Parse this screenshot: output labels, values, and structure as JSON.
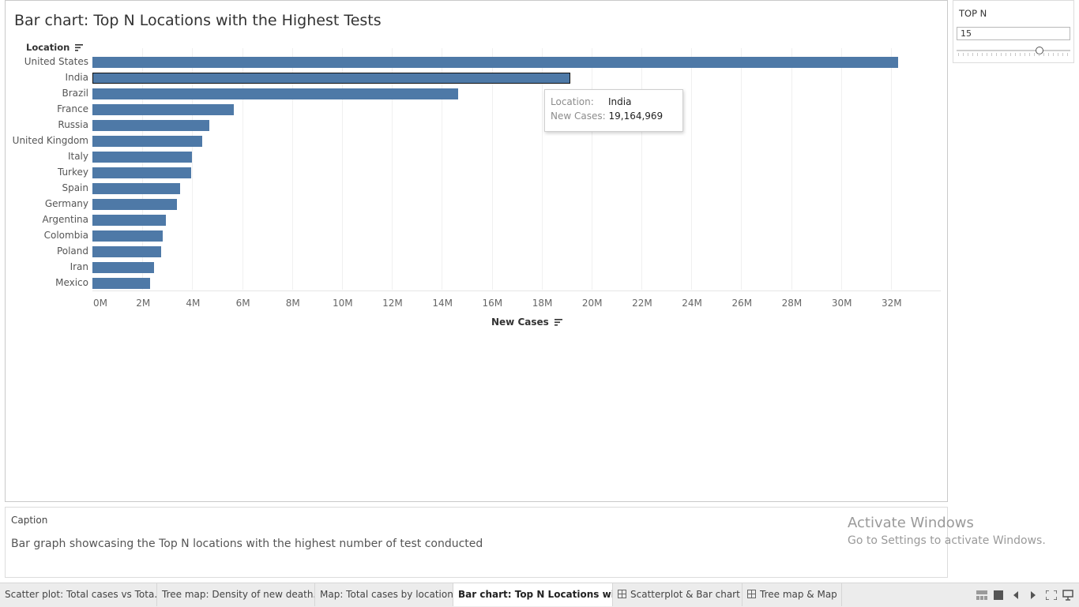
{
  "view": {
    "title": "Bar chart: Top N Locations with the Highest Tests",
    "y_header": "Location",
    "x_header": "New Cases"
  },
  "chart_data": {
    "type": "bar",
    "orientation": "horizontal",
    "categories": [
      "United States",
      "India",
      "Brazil",
      "France",
      "Russia",
      "United Kingdom",
      "Italy",
      "Turkey",
      "Spain",
      "Germany",
      "Argentina",
      "Colombia",
      "Poland",
      "Iran",
      "Mexico"
    ],
    "values": [
      32300000,
      19164969,
      14650000,
      5650000,
      4700000,
      4400000,
      4000000,
      3950000,
      3500000,
      3400000,
      2950000,
      2820000,
      2760000,
      2470000,
      2320000
    ],
    "xlabel": "New Cases",
    "ylabel": "Location",
    "xlim": [
      0,
      34000000
    ],
    "x_ticks": [
      "0M",
      "2M",
      "4M",
      "6M",
      "8M",
      "10M",
      "12M",
      "14M",
      "16M",
      "18M",
      "20M",
      "22M",
      "24M",
      "26M",
      "28M",
      "30M",
      "32M"
    ],
    "color": "#4e79a7",
    "selected": "India",
    "grid": true
  },
  "tooltip": {
    "location_label": "Location:",
    "location_value": "India",
    "cases_label": "New Cases:",
    "cases_value": "19,164,969"
  },
  "top_n": {
    "title": "TOP N",
    "value": "15",
    "slider_fraction": 0.72
  },
  "caption": {
    "title": "Caption",
    "text": "Bar graph showcasing the Top N locations with the highest number of test conducted"
  },
  "watermark": {
    "line1": "Activate Windows",
    "line2": "Go to Settings to activate Windows."
  },
  "tabs": [
    {
      "label": "Scatter plot: Total cases vs Tota...",
      "icon": ""
    },
    {
      "label": "Tree map: Density of new death...",
      "icon": ""
    },
    {
      "label": "Map: Total cases by location",
      "icon": ""
    },
    {
      "label": "Bar chart: Top N Locations wit...",
      "icon": "",
      "active": true
    },
    {
      "label": "Scatterplot & Bar chart",
      "icon": "dashboard-icon"
    },
    {
      "label": "Tree map & Map",
      "icon": "dashboard-icon"
    }
  ],
  "nav_icons": [
    "show-filmstrip-icon",
    "show-tabs-icon",
    "previous-sheet-icon",
    "next-sheet-icon",
    "fullscreen-icon",
    "presentation-mode-icon"
  ]
}
